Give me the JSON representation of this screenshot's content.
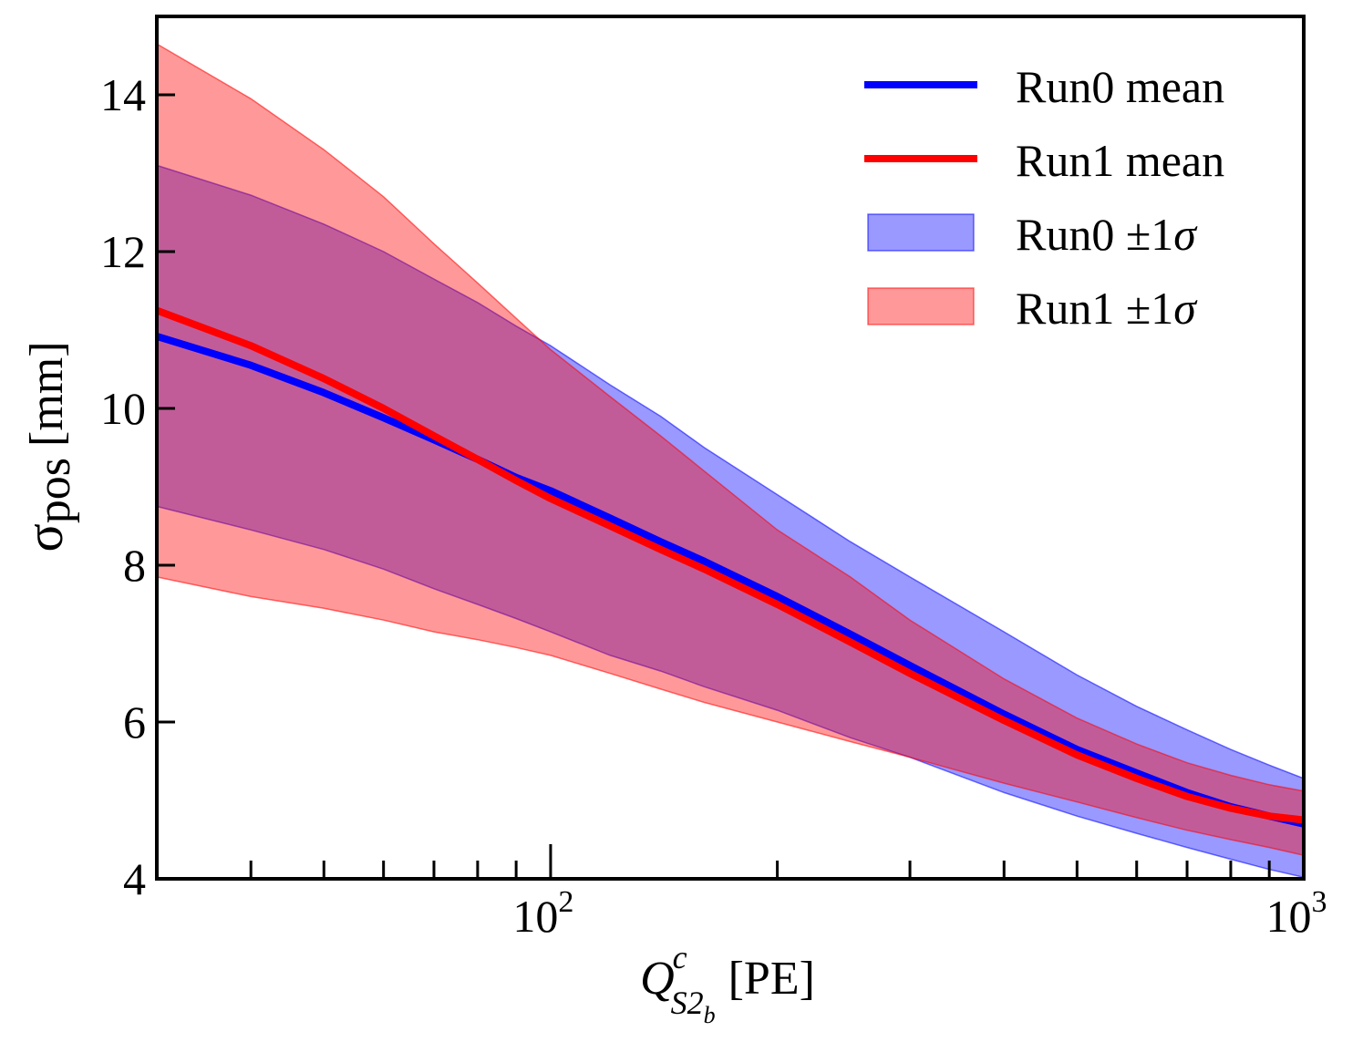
{
  "chart_data": {
    "type": "line",
    "xscale": "log",
    "xlim": [
      30,
      1000
    ],
    "ylim": [
      4,
      15
    ],
    "title": "",
    "xlabel": {
      "base": "Q",
      "sup": "c",
      "sub": "S2",
      "subsub": "b",
      "unit": "[PE]"
    },
    "ylabel": {
      "symbol": "σ",
      "sub": "pos",
      "unit": "[mm]"
    },
    "y_ticks": [
      {
        "value": 4,
        "label": "4"
      },
      {
        "value": 6,
        "label": "6"
      },
      {
        "value": 8,
        "label": "8"
      },
      {
        "value": 10,
        "label": "10"
      },
      {
        "value": 12,
        "label": "12"
      },
      {
        "value": 14,
        "label": "14"
      }
    ],
    "x_major_ticks": [
      {
        "value": 100,
        "base": "10",
        "exp": "2"
      },
      {
        "value": 1000,
        "base": "10",
        "exp": "3"
      }
    ],
    "x_minor_ticks": [
      40,
      50,
      60,
      70,
      80,
      90,
      200,
      300,
      400,
      500,
      600,
      700,
      800,
      900
    ],
    "x": [
      30,
      40,
      50,
      60,
      70,
      80,
      90,
      100,
      120,
      140,
      160,
      200,
      250,
      300,
      400,
      500,
      600,
      700,
      800,
      900,
      1000
    ],
    "series": [
      {
        "name": "Run0",
        "color": "#0000ff",
        "band_color": "#0000ff",
        "mean": [
          10.92,
          10.55,
          10.2,
          9.88,
          9.6,
          9.35,
          9.12,
          8.95,
          8.6,
          8.3,
          8.05,
          7.6,
          7.12,
          6.72,
          6.1,
          5.65,
          5.35,
          5.1,
          4.92,
          4.8,
          4.7
        ],
        "upper": [
          13.1,
          12.72,
          12.35,
          12.0,
          11.65,
          11.35,
          11.05,
          10.8,
          10.3,
          9.9,
          9.5,
          8.9,
          8.3,
          7.85,
          7.15,
          6.6,
          6.2,
          5.9,
          5.65,
          5.45,
          5.28
        ],
        "lower": [
          8.75,
          8.45,
          8.2,
          7.95,
          7.7,
          7.5,
          7.32,
          7.15,
          6.85,
          6.65,
          6.45,
          6.15,
          5.8,
          5.55,
          5.1,
          4.8,
          4.58,
          4.4,
          4.25,
          4.12,
          4.02
        ]
      },
      {
        "name": "Run1",
        "color": "#ff0000",
        "band_color": "#ff0000",
        "mean": [
          11.25,
          10.8,
          10.38,
          10.0,
          9.65,
          9.35,
          9.08,
          8.85,
          8.5,
          8.2,
          7.95,
          7.5,
          7.02,
          6.62,
          6.02,
          5.58,
          5.28,
          5.05,
          4.9,
          4.8,
          4.75
        ],
        "upper": [
          14.65,
          13.95,
          13.3,
          12.7,
          12.1,
          11.6,
          11.15,
          10.75,
          10.15,
          9.65,
          9.2,
          8.45,
          7.85,
          7.3,
          6.55,
          6.05,
          5.72,
          5.48,
          5.32,
          5.2,
          5.12
        ],
        "lower": [
          7.85,
          7.6,
          7.45,
          7.3,
          7.15,
          7.05,
          6.95,
          6.85,
          6.62,
          6.42,
          6.25,
          6.0,
          5.75,
          5.55,
          5.22,
          4.98,
          4.78,
          4.62,
          4.5,
          4.4,
          4.3
        ]
      }
    ],
    "legend": {
      "position": "top-right",
      "entries": [
        {
          "kind": "line",
          "series": "Run0",
          "label": "Run0 mean"
        },
        {
          "kind": "line",
          "series": "Run1",
          "label": "Run1 mean"
        },
        {
          "kind": "band",
          "series": "Run0",
          "label": "Run0 ±1",
          "sigma": "σ"
        },
        {
          "kind": "band",
          "series": "Run1",
          "label": "Run1 ±1",
          "sigma": "σ"
        }
      ]
    }
  }
}
